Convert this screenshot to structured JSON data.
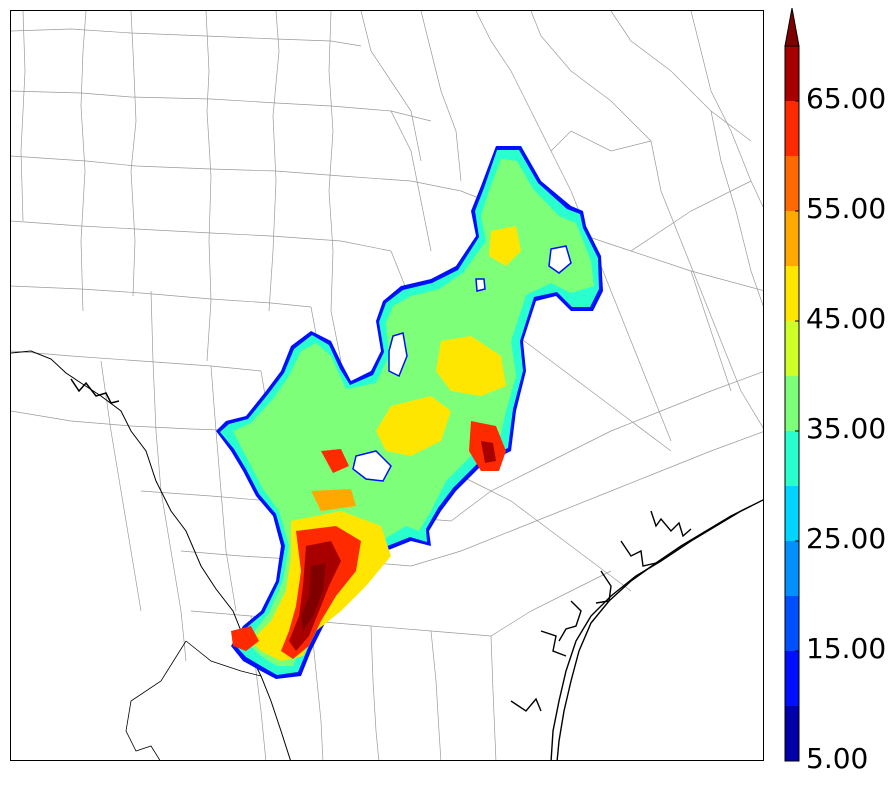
{
  "colorbar": {
    "tick_labels": [
      "5.00",
      "15.00",
      "25.00",
      "35.00",
      "45.00",
      "55.00",
      "65.00"
    ],
    "tick_values": [
      5,
      15,
      25,
      35,
      45,
      55,
      65
    ],
    "levels": [
      5,
      10,
      15,
      20,
      25,
      30,
      35,
      40,
      45,
      50,
      55,
      60,
      65,
      70
    ],
    "colors": [
      "#0000a8",
      "#0010ff",
      "#0050ff",
      "#0090ff",
      "#00d4ff",
      "#29ffce",
      "#7dff7a",
      "#ceff29",
      "#ffe600",
      "#ffa800",
      "#ff6a00",
      "#ff2a00",
      "#a80000",
      "#800000"
    ],
    "extend": "max"
  },
  "map": {
    "coastline_color": "#000000",
    "county_line_color": "#9a9a9a"
  }
}
